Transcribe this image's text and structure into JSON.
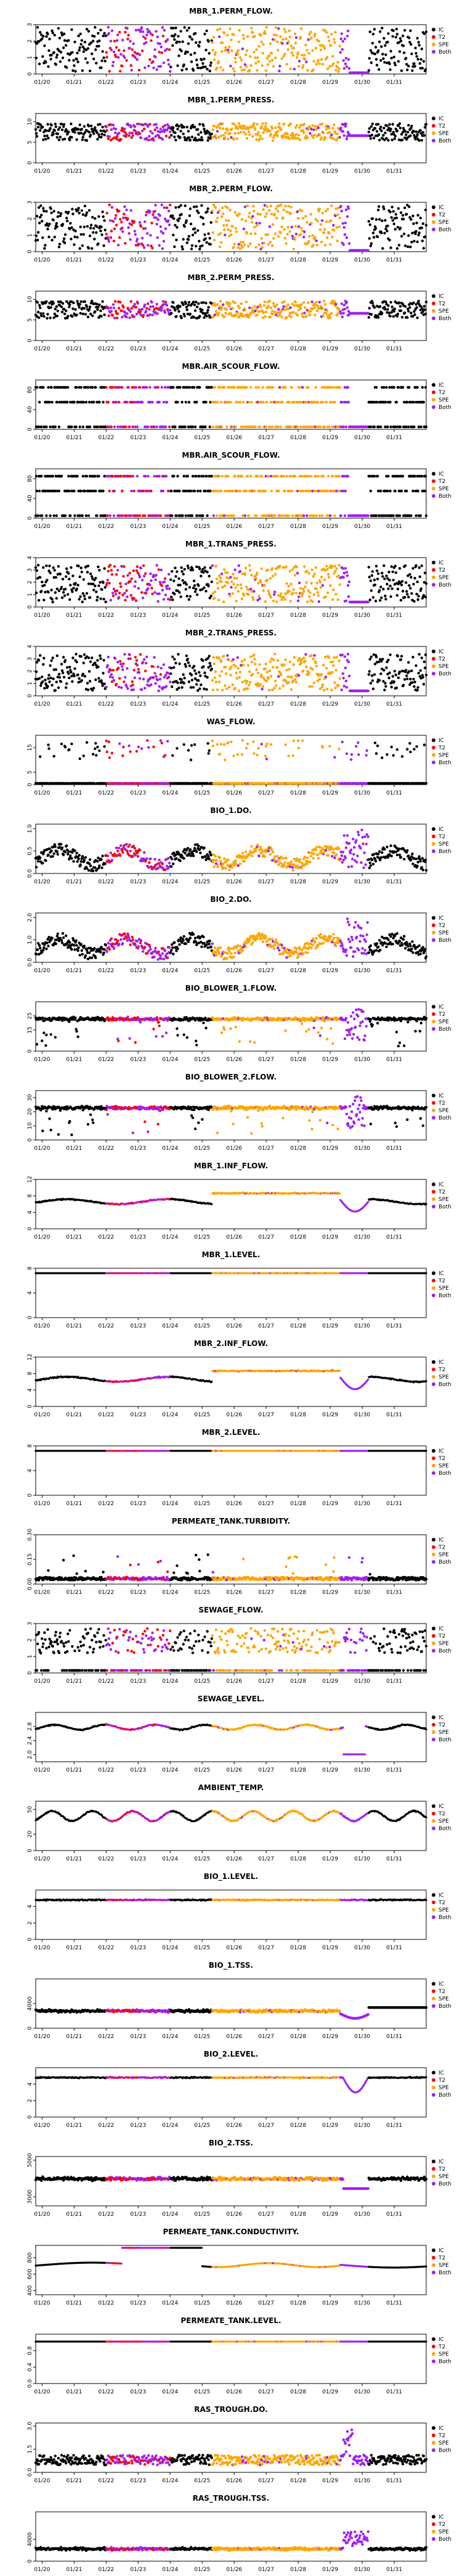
{
  "x_tick_labels": [
    "01/20",
    "01/21",
    "01/22",
    "01/23",
    "01/24",
    "01/25",
    "01/26",
    "01/27",
    "01/28",
    "01/29",
    "01/30",
    "01/31"
  ],
  "legend": {
    "placement": "right",
    "entries": [
      {
        "label": "IC",
        "color": "#000000"
      },
      {
        "label": "T2",
        "color": "#ff0000"
      },
      {
        "label": "SPE",
        "color": "#ffa500"
      },
      {
        "label": "Both",
        "color": "#a020f0"
      }
    ]
  },
  "series_colors": {
    "ic": "#000000",
    "t2": "#ff0000",
    "spe": "#ffa500",
    "both": "#a020f0"
  },
  "chart_data": [
    {
      "type": "scatter",
      "title": "MBR_1.PERM_FLOW.",
      "ylim": [
        0,
        3
      ],
      "y_ticks": [
        "0",
        "1",
        "2",
        "3"
      ],
      "profile": "dense_gap"
    },
    {
      "type": "scatter",
      "title": "MBR_1.PERM_PRESS.",
      "ylim": [
        0,
        12
      ],
      "y_ticks": [
        "0",
        "5",
        "10"
      ],
      "profile": "band_gap"
    },
    {
      "type": "scatter",
      "title": "MBR_2.PERM_FLOW.",
      "ylim": [
        0,
        3
      ],
      "y_ticks": [
        "0",
        "1",
        "2",
        "3"
      ],
      "profile": "dense_gap"
    },
    {
      "type": "scatter",
      "title": "MBR_2.PERM_PRESS.",
      "ylim": [
        0,
        12
      ],
      "y_ticks": [
        "0",
        "5",
        "10"
      ],
      "profile": "band_gap"
    },
    {
      "type": "scatter",
      "title": "MBR.AIR_SCOUR_FLOW.",
      "ylim": [
        0,
        100
      ],
      "y_ticks": [
        "0",
        "40",
        "80"
      ],
      "profile": "scour"
    },
    {
      "type": "scatter",
      "title": "MBR.AIR_SCOUR_FLOW.",
      "ylim": [
        0,
        100
      ],
      "y_ticks": [
        "0",
        "40",
        "80"
      ],
      "profile": "scour"
    },
    {
      "type": "scatter",
      "title": "MBR_1.TRANS_PRESS.",
      "ylim": [
        0,
        4
      ],
      "y_ticks": [
        "0",
        "1",
        "2",
        "3",
        "4"
      ],
      "profile": "trans"
    },
    {
      "type": "scatter",
      "title": "MBR_2.TRANS_PRESS.",
      "ylim": [
        0,
        4
      ],
      "y_ticks": [
        "0",
        "1",
        "2",
        "3",
        "4"
      ],
      "profile": "trans"
    },
    {
      "type": "scatter",
      "title": "WAS_FLOW.",
      "ylim": [
        0,
        20
      ],
      "y_ticks": [
        "0",
        "5",
        "15"
      ],
      "profile": "was"
    },
    {
      "type": "scatter",
      "title": "BIO_1.DO.",
      "ylim": [
        0,
        1.1
      ],
      "y_ticks": [
        "0.0",
        "0.5",
        "1.0"
      ],
      "profile": "do"
    },
    {
      "type": "scatter",
      "title": "BIO_2.DO.",
      "ylim": [
        0,
        2.2
      ],
      "y_ticks": [
        "0.0",
        "1.0",
        "2.0"
      ],
      "profile": "do"
    },
    {
      "type": "scatter",
      "title": "BIO_BLOWER_1.FLOW.",
      "ylim": [
        0,
        35
      ],
      "y_ticks": [
        "0",
        "15",
        "25"
      ],
      "profile": "blower"
    },
    {
      "type": "scatter",
      "title": "BIO_BLOWER_2.FLOW.",
      "ylim": [
        0,
        35
      ],
      "y_ticks": [
        "0",
        "10",
        "20",
        "30"
      ],
      "profile": "blower"
    },
    {
      "type": "line",
      "title": "MBR_1.INF_FLOW.",
      "ylim": [
        0,
        12
      ],
      "y_ticks": [
        "0",
        "4",
        "8",
        "12"
      ],
      "profile": "inf"
    },
    {
      "type": "line",
      "title": "MBR_1.LEVEL.",
      "ylim": [
        0,
        8
      ],
      "y_ticks": [
        "0",
        "4",
        "8"
      ],
      "profile": "flat"
    },
    {
      "type": "line",
      "title": "MBR_2.INF_FLOW.",
      "ylim": [
        0,
        12
      ],
      "y_ticks": [
        "0",
        "4",
        "8",
        "12"
      ],
      "profile": "inf"
    },
    {
      "type": "line",
      "title": "MBR_2.LEVEL.",
      "ylim": [
        0,
        8
      ],
      "y_ticks": [
        "0",
        "4",
        "8"
      ],
      "profile": "flat"
    },
    {
      "type": "scatter",
      "title": "PERMEATE_TANK.TURBIDITY.",
      "ylim": [
        0,
        0.3
      ],
      "y_ticks": [
        "0.00",
        "0.15",
        "0.30"
      ],
      "profile": "turb"
    },
    {
      "type": "scatter",
      "title": "SEWAGE_FLOW.",
      "ylim": [
        0,
        3
      ],
      "y_ticks": [
        "0",
        "1",
        "2",
        "3"
      ],
      "profile": "sewflow"
    },
    {
      "type": "line",
      "title": "SEWAGE_LEVEL.",
      "ylim": [
        1.8,
        3.2
      ],
      "y_ticks": [
        "2.0",
        "2.4",
        "2.8"
      ],
      "profile": "sewlevel"
    },
    {
      "type": "line",
      "title": "AMBIENT_TEMP.",
      "ylim": [
        0,
        60
      ],
      "y_ticks": [
        "0",
        "20",
        "50"
      ],
      "profile": "temp"
    },
    {
      "type": "line",
      "title": "BIO_1.LEVEL.",
      "ylim": [
        0,
        6
      ],
      "y_ticks": [
        "0",
        "2",
        "4"
      ],
      "profile": "biolevel"
    },
    {
      "type": "scatter",
      "title": "BIO_1.TSS.",
      "ylim": [
        0,
        8000
      ],
      "y_ticks": [
        "0",
        "4000"
      ],
      "profile": "tss"
    },
    {
      "type": "line",
      "title": "BIO_2.LEVEL.",
      "ylim": [
        0,
        6
      ],
      "y_ticks": [
        "0",
        "2",
        "4"
      ],
      "profile": "biolevel2"
    },
    {
      "type": "scatter",
      "title": "BIO_2.TSS.",
      "ylim": [
        2500,
        5200
      ],
      "y_ticks": [
        "3000",
        "5000"
      ],
      "profile": "tss2"
    },
    {
      "type": "line",
      "title": "PERMEATE_TANK.CONDUCTIVITY.",
      "ylim": [
        350,
        950
      ],
      "y_ticks": [
        "400",
        "600",
        "800"
      ],
      "profile": "cond"
    },
    {
      "type": "line",
      "title": "PERMEATE_TANK.LEVEL.",
      "ylim": [
        0,
        1.2
      ],
      "y_ticks": [
        "0.0",
        "0.4",
        "0.8"
      ],
      "profile": "permlevel"
    },
    {
      "type": "scatter",
      "title": "RAS_TROUGH.DO.",
      "ylim": [
        0,
        3.2
      ],
      "y_ticks": [
        "0.0",
        "1.5",
        "3.0"
      ],
      "profile": "rasdo"
    },
    {
      "type": "scatter",
      "title": "RAS_TROUGH.TSS.",
      "ylim": [
        0,
        9000
      ],
      "y_ticks": [
        "0",
        "4000"
      ],
      "profile": "rastss"
    }
  ]
}
